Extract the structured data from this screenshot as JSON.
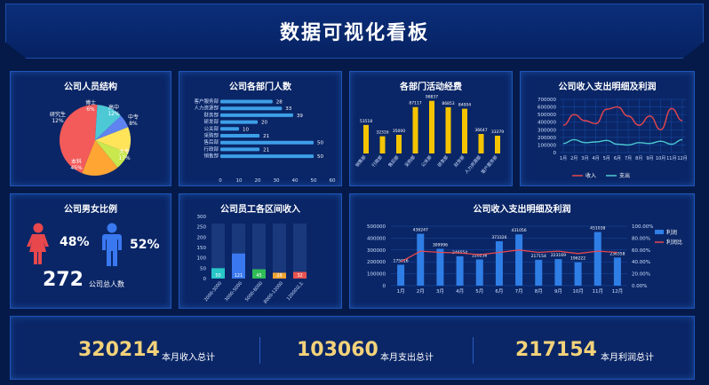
{
  "header": {
    "title": "数据可视化看板"
  },
  "panels": {
    "p1": "公司人员结构",
    "p2": "公司各部门人数",
    "p3": "各部门活动经费",
    "p4": "公司收入支出明细及利润",
    "p5": "公司男女比例",
    "p6": "公司员工各区间收入",
    "p7": "公司收入支出明细及利润"
  },
  "pie": {
    "slices": [
      {
        "name": "本科",
        "pct": "45%",
        "value": 45,
        "color": "#f35a5a"
      },
      {
        "name": "研究生",
        "pct": "12%",
        "value": 12,
        "color": "#4dc9d6"
      },
      {
        "name": "博士",
        "pct": "6%",
        "value": 6,
        "color": "#5f83f0"
      },
      {
        "name": "高中",
        "pct": "12%",
        "value": 12,
        "color": "#ffe45a"
      },
      {
        "name": "中专",
        "pct": "8%",
        "value": 8,
        "color": "#c9e84d"
      },
      {
        "name": "大专",
        "pct": "17%",
        "value": 17,
        "color": "#ffa534"
      }
    ]
  },
  "dept": {
    "categories": [
      "客户服务部",
      "人力资源部",
      "财务部",
      "研发部",
      "公关部",
      "采购部",
      "售后部",
      "行政部",
      "销售部"
    ],
    "values": [
      28,
      33,
      39,
      20,
      10,
      21,
      50,
      21,
      50
    ],
    "xticks": [
      "0",
      "10",
      "20",
      "30",
      "40",
      "50",
      "60"
    ]
  },
  "fund": {
    "categories": [
      "销售部",
      "行政部",
      "售后部",
      "采购部",
      "公关部",
      "研发部",
      "财务部",
      "人力资源部",
      "客户服务部"
    ],
    "values": [
      53518,
      32316,
      35000,
      87117,
      98837,
      86853,
      84004,
      36647,
      33379
    ],
    "labels": [
      "53518",
      "32316",
      "35000",
      "87117",
      "98837",
      "86853",
      "84004",
      "36647",
      "33379"
    ],
    "color": "#f5c400"
  },
  "line1": {
    "type": "line",
    "categories": [
      "1月",
      "2月",
      "3月",
      "4月",
      "5月",
      "6月",
      "7月",
      "8月",
      "9月",
      "10月",
      "11月",
      "12月"
    ],
    "series": [
      {
        "name": "收入",
        "values": [
          360000,
          500000,
          420000,
          380000,
          570000,
          600000,
          480000,
          360000,
          480000,
          300000,
          580000,
          420000
        ],
        "color": "#e8474c"
      },
      {
        "name": "支出",
        "values": [
          120000,
          170000,
          130000,
          140000,
          160000,
          110000,
          100000,
          130000,
          120000,
          150000,
          110000,
          170000
        ],
        "color": "#4cc8d0"
      }
    ],
    "yticks": [
      "700000",
      "600000",
      "500000",
      "400000",
      "300000",
      "200000",
      "100000",
      "0"
    ],
    "ylim": [
      0,
      700000
    ]
  },
  "gender": {
    "female_pct": "48%",
    "male_pct": "52%",
    "total": "272",
    "total_label": "公司总人数"
  },
  "income": {
    "categories": [
      "2000-3000",
      "3000-5000",
      "5000-8000",
      "8000-12000",
      "12000以上"
    ],
    "values": [
      50,
      121,
      45,
      28,
      32
    ],
    "labels": [
      "50",
      "121",
      "45",
      "28",
      "32"
    ],
    "colors": [
      "#28c7c8",
      "#3a78f0",
      "#2fbd57",
      "#f0a532",
      "#e9534f"
    ],
    "yticks": [
      "300",
      "250",
      "200",
      "150",
      "100",
      "50",
      "0"
    ],
    "ylim": [
      0,
      300
    ]
  },
  "combo": {
    "categories": [
      "1月",
      "2月",
      "3月",
      "4月",
      "5月",
      "6月",
      "7月",
      "8月",
      "9月",
      "10月",
      "11月",
      "12月"
    ],
    "bars": [
      175916,
      436247,
      309996,
      246554,
      220236,
      373326,
      431056,
      217154,
      223169,
      196222,
      451038,
      236358
    ],
    "barlabels": [
      "175916",
      "436247",
      "309996",
      "246554",
      "220236",
      "373326",
      "431056",
      "217154",
      "223169",
      "196222",
      "451038",
      "236358"
    ],
    "ratio": [
      40,
      58,
      56,
      55,
      52,
      56,
      60,
      56,
      58,
      54,
      58,
      56
    ],
    "yticks": [
      "500000",
      "400000",
      "300000",
      "200000",
      "100000",
      "0"
    ],
    "rticks": [
      "100.00%",
      "80.00%",
      "60.00%",
      "40.00%",
      "20.00%",
      "0.00%"
    ],
    "legend": [
      "利润",
      "利润比"
    ],
    "ylim": [
      0,
      500000
    ]
  },
  "summary": [
    {
      "value": "320214",
      "label": "本月收入总计"
    },
    {
      "value": "103060",
      "label": "本月支出总计"
    },
    {
      "value": "217154",
      "label": "本月利润总计"
    }
  ]
}
